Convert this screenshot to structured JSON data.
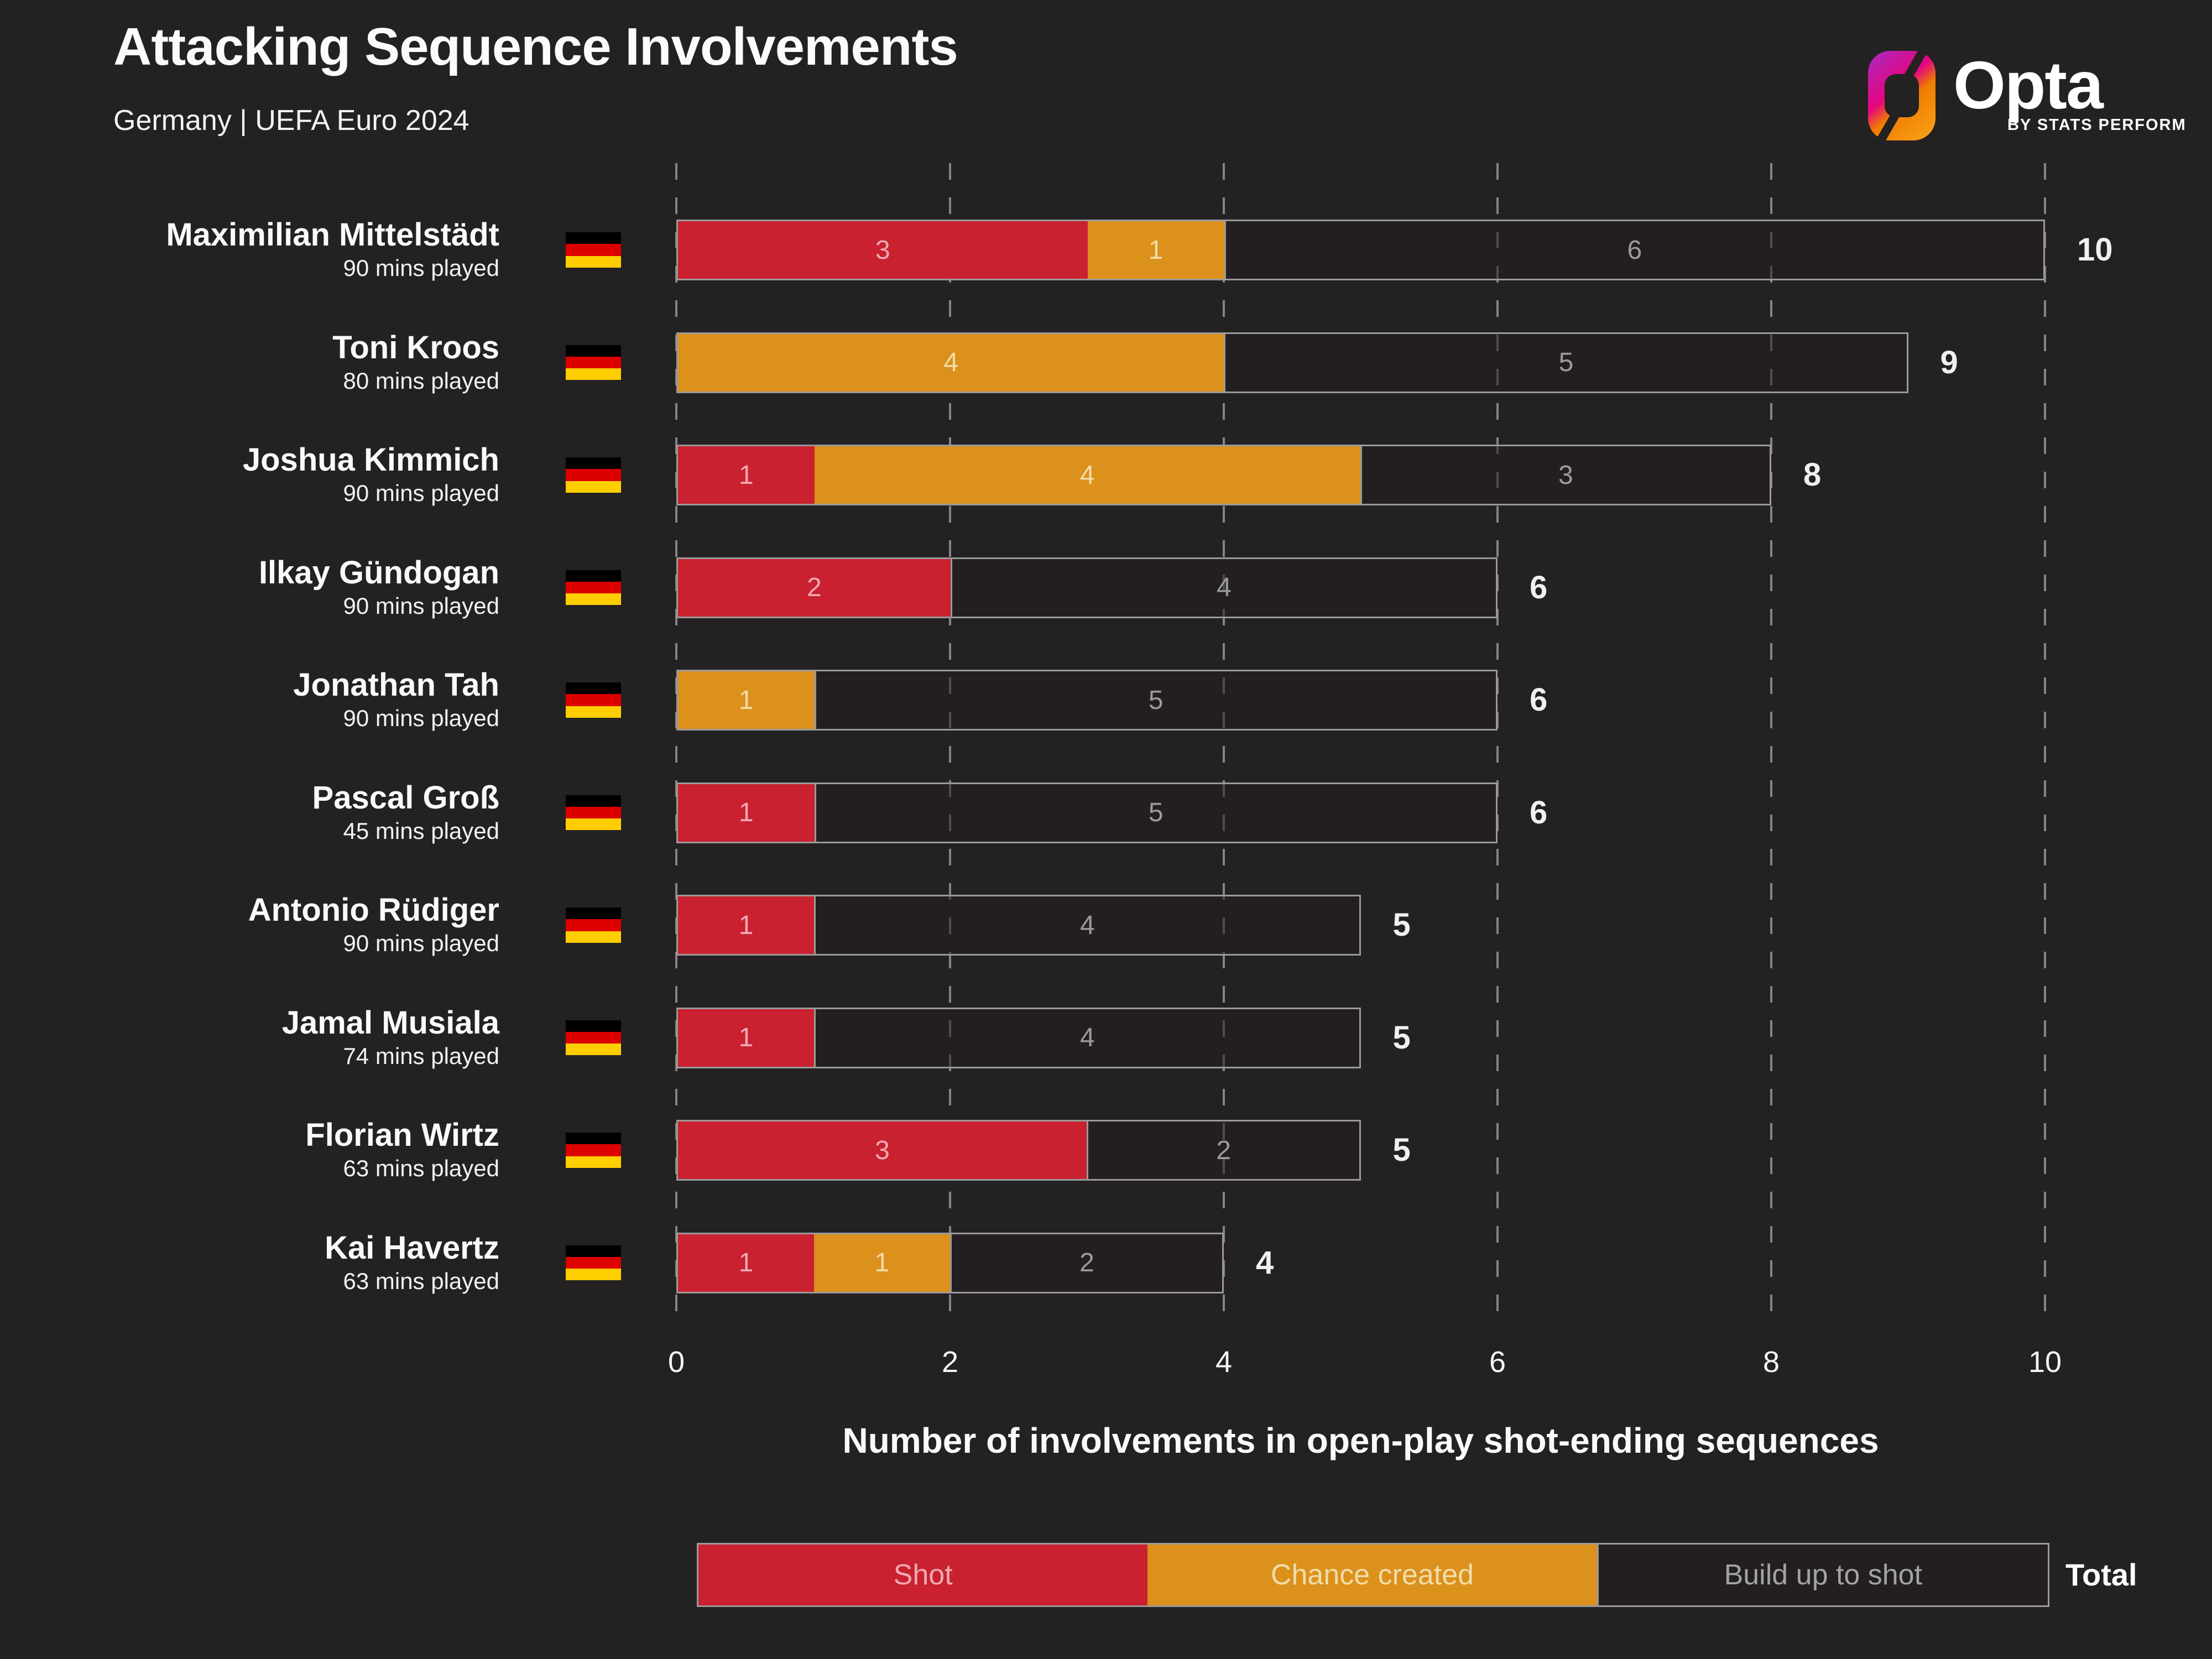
{
  "header": {
    "title": "Attacking Sequence Involvements",
    "subtitle": "Germany | UEFA Euro 2024"
  },
  "logo": {
    "brand": "Opta",
    "tagline": "BY STATS PERFORM"
  },
  "chart_data": {
    "type": "bar",
    "orientation": "horizontal",
    "stacked": true,
    "title": "Attacking Sequence Involvements",
    "subtitle": "Germany | UEFA Euro 2024",
    "xlabel": "Number of involvements in open-play shot-ending sequences",
    "xlim": [
      0,
      10
    ],
    "x_ticks": [
      0,
      2,
      4,
      6,
      8,
      10
    ],
    "grid": "dashed-vertical",
    "legend_position": "bottom",
    "legend": [
      "Shot",
      "Chance created",
      "Build up to shot"
    ],
    "total_label": "Total",
    "series_keys": [
      "shot",
      "chance",
      "buildup"
    ],
    "players": [
      {
        "name": "Maximilian Mittelstädt",
        "mins": "90 mins played",
        "shot": 3,
        "chance": 1,
        "buildup": 6,
        "total": 10
      },
      {
        "name": "Toni Kroos",
        "mins": "80 mins played",
        "shot": 0,
        "chance": 4,
        "buildup": 5,
        "total": 9
      },
      {
        "name": "Joshua Kimmich",
        "mins": "90 mins played",
        "shot": 1,
        "chance": 4,
        "buildup": 3,
        "total": 8
      },
      {
        "name": "Ilkay Gündogan",
        "mins": "90 mins played",
        "shot": 2,
        "chance": 0,
        "buildup": 4,
        "total": 6
      },
      {
        "name": "Jonathan Tah",
        "mins": "90 mins played",
        "shot": 0,
        "chance": 1,
        "buildup": 5,
        "total": 6
      },
      {
        "name": "Pascal Groß",
        "mins": "45 mins played",
        "shot": 1,
        "chance": 0,
        "buildup": 5,
        "total": 6
      },
      {
        "name": "Antonio Rüdiger",
        "mins": "90 mins played",
        "shot": 1,
        "chance": 0,
        "buildup": 4,
        "total": 5
      },
      {
        "name": "Jamal Musiala",
        "mins": "74 mins played",
        "shot": 1,
        "chance": 0,
        "buildup": 4,
        "total": 5
      },
      {
        "name": "Florian Wirtz",
        "mins": "63 mins played",
        "shot": 3,
        "chance": 0,
        "buildup": 2,
        "total": 5
      },
      {
        "name": "Kai Havertz",
        "mins": "63 mins played",
        "shot": 1,
        "chance": 1,
        "buildup": 2,
        "total": 4
      }
    ]
  },
  "colors": {
    "background": "#242122",
    "shot": "#C9212F",
    "chance": "#DB911C",
    "buildup_border": "#9A9A9A",
    "grid": "#858585",
    "shot_label": "#EFA9B4",
    "chance_label": "#F2DCA9",
    "buildup_label": "#9B9B9B",
    "total_text": "#F0F0F0",
    "flag_black": "#000000",
    "flag_red": "#DD0000",
    "flag_gold": "#FFCE00",
    "logo_magenta": "#E5057E",
    "logo_orange": "#F9A51A"
  }
}
